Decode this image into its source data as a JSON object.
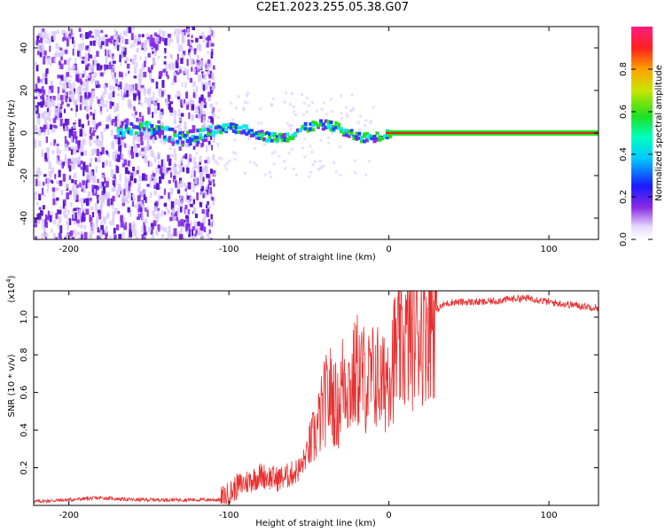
{
  "title": "C2E1.2023.255.05.38.G07",
  "colors": {
    "snr_line": "#e83030",
    "spectro_purple": "#7a1ee6",
    "spectro_blue": "#2840ff",
    "spectro_cyan": "#19e6e6",
    "spectro_green": "#20e020",
    "spectro_red": "#e82020"
  },
  "chart_data": [
    {
      "type": "heatmap",
      "name": "spectrogram",
      "xlabel": "Height of straight line (km)",
      "ylabel": "Frequency (Hz)",
      "xlim": [
        -222,
        131
      ],
      "ylim": [
        -50,
        50
      ],
      "xticks": [
        -200,
        -100,
        0,
        100
      ],
      "yticks": [
        -40,
        -20,
        0,
        20,
        40
      ],
      "xtick_labels": [
        "-200",
        "-100",
        "0",
        "100"
      ],
      "ytick_labels": [
        "-40",
        "-20",
        "0",
        "20",
        "40"
      ],
      "signal_line_hz": 0,
      "noise_region_x": [
        -222,
        -110
      ],
      "colorbar": {
        "label": "Normalized spectral amplitude",
        "range": [
          0,
          1
        ],
        "ticks": [
          0.0,
          0.2,
          0.4,
          0.6,
          0.8
        ],
        "tick_labels": [
          "0.0",
          "0.2",
          "0.4",
          "0.6",
          "0.8"
        ]
      }
    },
    {
      "type": "line",
      "name": "snr",
      "xlabel": "Height of straight line (km)",
      "ylabel": "SNR (10 * v/v)",
      "y_multiplier_label": "(x10",
      "y_multiplier_exp": "4",
      "xlim": [
        -222,
        131
      ],
      "ylim": [
        0,
        1.14
      ],
      "xticks": [
        -200,
        -100,
        0,
        100
      ],
      "yticks": [
        0.2,
        0.4,
        0.6,
        0.8,
        1.0
      ],
      "xtick_labels": [
        "-200",
        "-100",
        "0",
        "100"
      ],
      "ytick_labels": [
        "0.2",
        "0.4",
        "0.6",
        "0.8",
        "1.0"
      ],
      "series": [
        {
          "x": [
            -222,
            -200,
            -180,
            -160,
            -140,
            -120,
            -105,
            -100,
            -95,
            -90,
            -85,
            -80,
            -75,
            -70,
            -65,
            -60,
            -55,
            -50,
            -45,
            -40,
            -36,
            -32,
            -28,
            -24,
            -20,
            -16,
            -12,
            -8,
            -4,
            0,
            4,
            8,
            12,
            16,
            20,
            25,
            30,
            35,
            40,
            50,
            60,
            70,
            80,
            90,
            100,
            110,
            120,
            131
          ],
          "y": [
            0.02,
            0.03,
            0.04,
            0.03,
            0.03,
            0.03,
            0.03,
            0.06,
            0.1,
            0.12,
            0.14,
            0.16,
            0.15,
            0.14,
            0.15,
            0.17,
            0.2,
            0.3,
            0.4,
            0.55,
            0.6,
            0.5,
            0.7,
            0.62,
            0.72,
            0.68,
            0.65,
            0.7,
            0.62,
            0.75,
            0.8,
            0.85,
            0.88,
            0.92,
            0.95,
            1.0,
            1.04,
            1.07,
            1.08,
            1.08,
            1.08,
            1.09,
            1.1,
            1.1,
            1.08,
            1.07,
            1.06,
            1.05
          ]
        }
      ]
    }
  ]
}
